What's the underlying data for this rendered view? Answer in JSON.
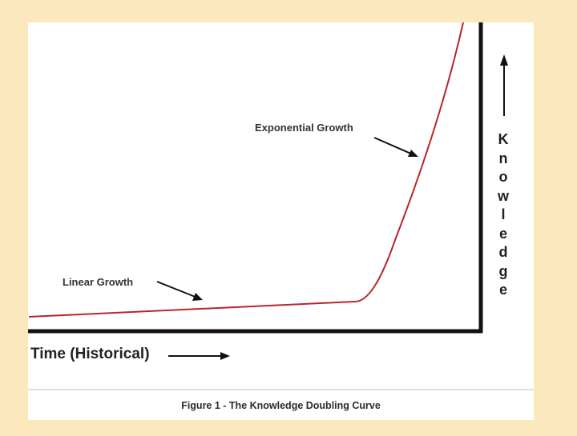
{
  "figure": {
    "caption": "Figure 1 - The Knowledge Doubling Curve",
    "labels": {
      "exponential": "Exponential Growth",
      "linear": "Linear Growth",
      "x_axis": "Time (Historical)",
      "y_axis": "Knowledge"
    },
    "colors": {
      "background": "#fbe9bd",
      "curve": "#b8262b",
      "axes": "#111111"
    }
  }
}
